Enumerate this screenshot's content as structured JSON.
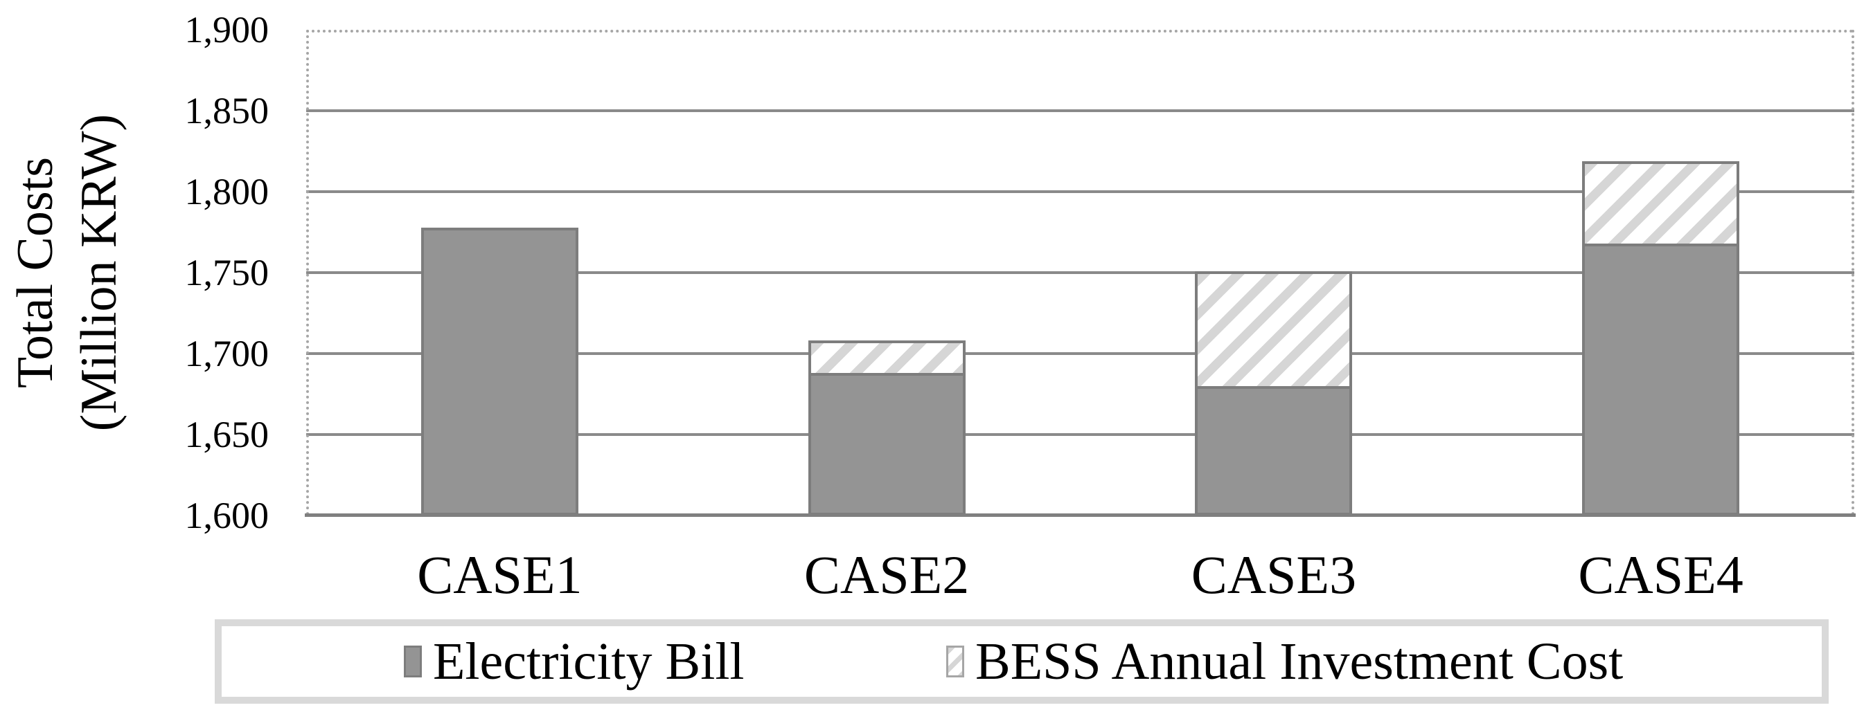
{
  "background": "#ffffff",
  "colors": {
    "gridline": "#8a8a8a",
    "axis_line": "#7f7f7f",
    "plot_border_dotted": "#a6a6a6",
    "bar_fill": "#949494",
    "bar_border": "#7d7d7d",
    "hatch_stripe": "#d6d6d6",
    "legend_border": "#d9d9d9",
    "text": "#000000"
  },
  "chart_data": {
    "type": "bar",
    "stacked": true,
    "categories": [
      "CASE1",
      "CASE2",
      "CASE3",
      "CASE4"
    ],
    "series": [
      {
        "name": "Electricity Bill",
        "style": "solid",
        "color": "#949494",
        "values": [
          1778,
          1688,
          1680,
          1768
        ]
      },
      {
        "name": "BESS Annual Investment Cost",
        "style": "diagonal-hatch",
        "color": "#d6d6d6",
        "values": [
          0,
          20,
          71,
          51
        ]
      }
    ],
    "stack_totals": [
      1778,
      1708,
      1751,
      1819
    ],
    "title": "",
    "xlabel": "",
    "ylabel": "Total Costs (Million KRW)",
    "ylabel_line1": "Total Costs",
    "ylabel_line2": "(Million KRW)",
    "ylim": [
      1600,
      1900
    ],
    "ytick_step": 50,
    "yticks": [
      {
        "value": 1900,
        "label": "1,900"
      },
      {
        "value": 1850,
        "label": "1,850"
      },
      {
        "value": 1800,
        "label": "1,800"
      },
      {
        "value": 1750,
        "label": "1,750"
      },
      {
        "value": 1700,
        "label": "1,700"
      },
      {
        "value": 1650,
        "label": "1,650"
      },
      {
        "value": 1600,
        "label": "1,600"
      }
    ],
    "grid": true,
    "legend_position": "bottom"
  }
}
